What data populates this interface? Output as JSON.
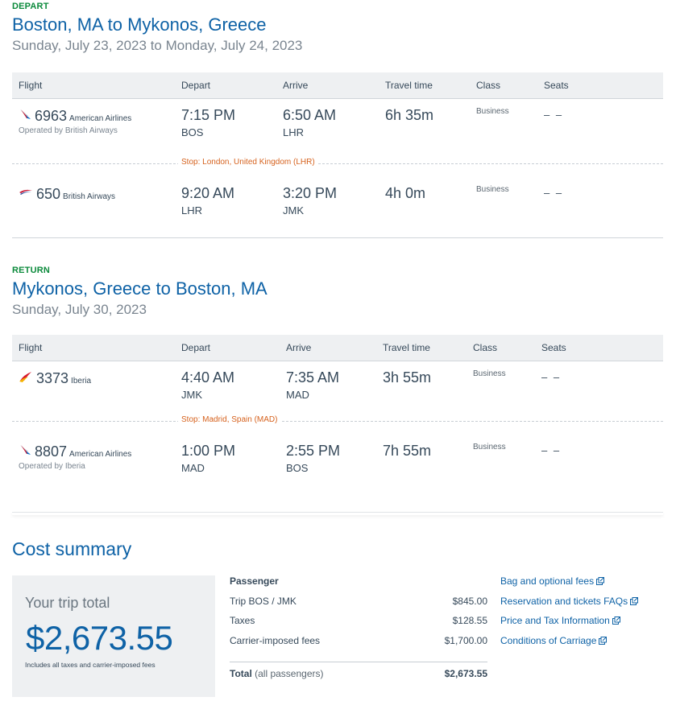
{
  "depart": {
    "label": "DEPART",
    "title": "Boston, MA to Mykonos, Greece",
    "date": "Sunday, July 23, 2023 to Monday, July 24, 2023",
    "headers": [
      "Flight",
      "Depart",
      "Arrive",
      "Travel time",
      "Class",
      "Seats"
    ],
    "segments": [
      {
        "icon": "american-airlines-logo-icon",
        "flight": "6963",
        "airline": "American Airlines",
        "operated": "Operated by British Airways",
        "dep_time": "7:15 PM",
        "dep_code": "BOS",
        "arr_time": "6:50 AM",
        "arr_code": "LHR",
        "duration": "6h 35m",
        "class": "Business",
        "seats": "– –"
      },
      {
        "icon": "british-airways-logo-icon",
        "flight": "650",
        "airline": "British Airways",
        "operated": "",
        "dep_time": "9:20 AM",
        "dep_code": "LHR",
        "arr_time": "3:20 PM",
        "arr_code": "JMK",
        "duration": "4h 0m",
        "class": "Business",
        "seats": "– –"
      }
    ],
    "stop": "Stop: London, United Kingdom (LHR)"
  },
  "return": {
    "label": "RETURN",
    "title": "Mykonos, Greece to Boston, MA",
    "date": "Sunday, July 30, 2023",
    "headers": [
      "Flight",
      "Depart",
      "Arrive",
      "Travel time",
      "Class",
      "Seats"
    ],
    "segments": [
      {
        "icon": "iberia-logo-icon",
        "flight": "3373",
        "airline": "Iberia",
        "operated": "",
        "dep_time": "4:40 AM",
        "dep_code": "JMK",
        "arr_time": "7:35 AM",
        "arr_code": "MAD",
        "duration": "3h 55m",
        "class": "Business",
        "seats": "– –"
      },
      {
        "icon": "american-airlines-logo-icon",
        "flight": "8807",
        "airline": "American Airlines",
        "operated": "Operated by Iberia",
        "dep_time": "1:00 PM",
        "dep_code": "MAD",
        "arr_time": "2:55 PM",
        "arr_code": "BOS",
        "duration": "7h 55m",
        "class": "Business",
        "seats": "– –"
      }
    ],
    "stop": "Stop: Madrid, Spain (MAD)"
  },
  "cost": {
    "title": "Cost summary",
    "trip_total_label": "Your trip total",
    "trip_total": "$2,673.55",
    "note": "Includes all taxes and carrier-imposed fees",
    "passenger_heading": "Passenger",
    "lines": [
      {
        "label": "Trip BOS / JMK",
        "value": "$845.00"
      },
      {
        "label": "Taxes",
        "value": "$128.55"
      },
      {
        "label": "Carrier-imposed fees",
        "value": "$1,700.00"
      }
    ],
    "total_label": "Total",
    "total_qualifier": "(all passengers)",
    "total_value": "$2,673.55"
  },
  "links": [
    "Bag and optional fees",
    "Reservation and tickets FAQs",
    "Price and Tax Information",
    "Conditions of Carriage"
  ],
  "colors": {
    "accent_blue": "#0e62a6",
    "depart_green": "#0b8a3b",
    "stop_orange": "#d6621e",
    "header_bg": "#eef0f2"
  }
}
